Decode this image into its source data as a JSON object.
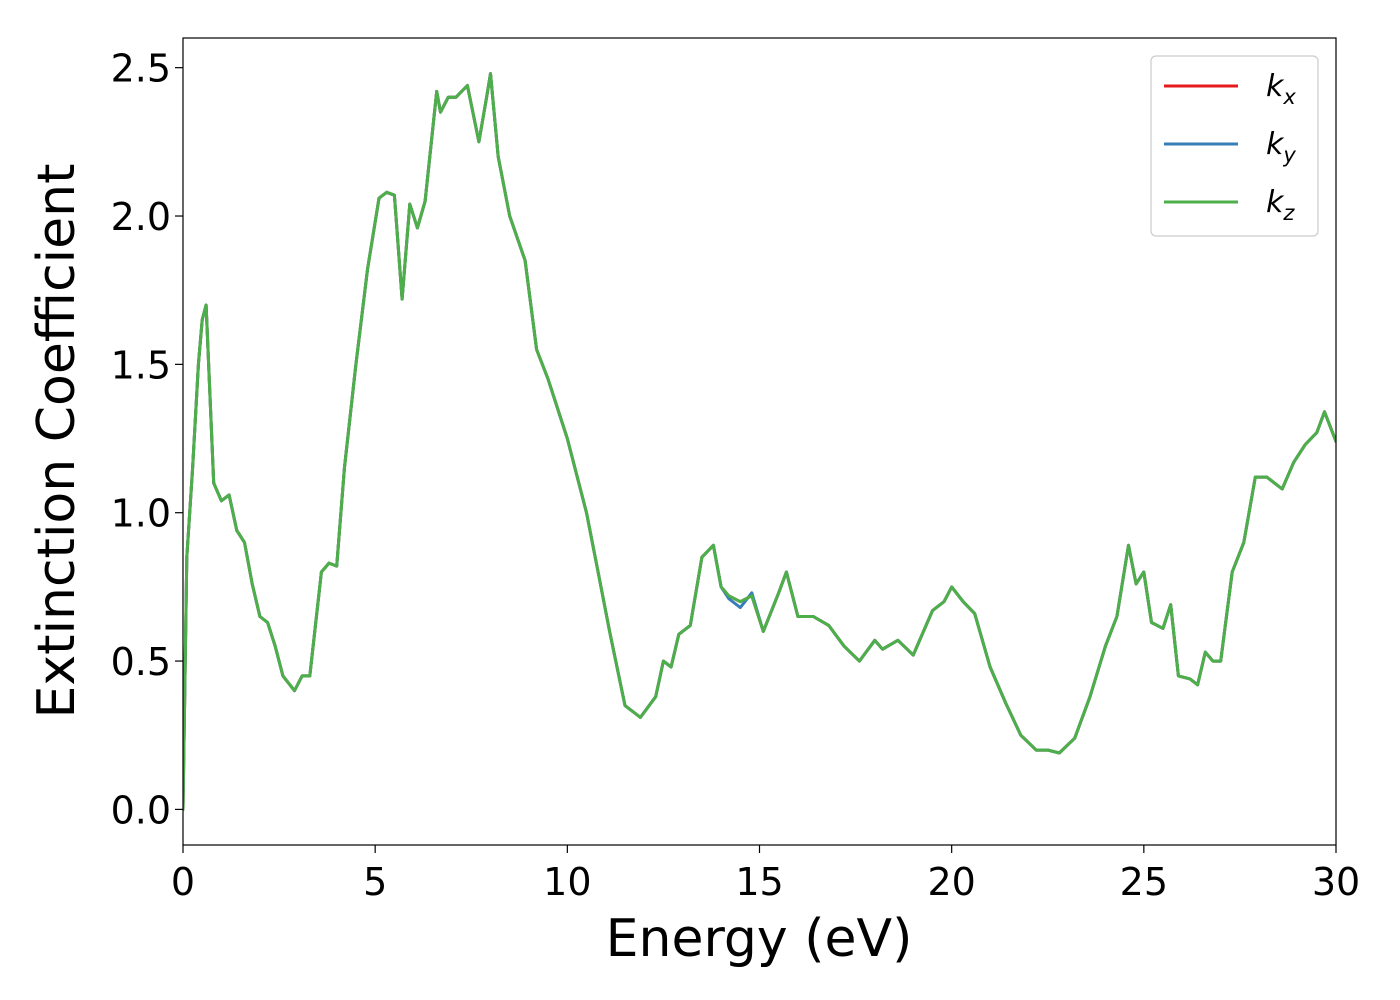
{
  "chart_data": {
    "type": "line",
    "xlabel": "Energy (eV)",
    "ylabel": "Extinction Coefficient",
    "xlim": [
      0,
      30
    ],
    "ylim": [
      -0.12,
      2.6
    ],
    "x_ticks": [
      "0",
      "5",
      "10",
      "15",
      "20",
      "25",
      "30"
    ],
    "y_ticks": [
      "0.0",
      "0.5",
      "1.0",
      "1.5",
      "2.0",
      "2.5"
    ],
    "x_tick_values": [
      0,
      5,
      10,
      15,
      20,
      25,
      30
    ],
    "y_tick_values": [
      0.0,
      0.5,
      1.0,
      1.5,
      2.0,
      2.5
    ],
    "grid": false,
    "legend_position": "top-right",
    "series": [
      {
        "name": "k_x",
        "label_base": "k",
        "label_sub": "x",
        "color": "#e41a1c",
        "x": [
          0,
          0.1,
          0.25,
          0.4,
          0.5,
          0.6,
          0.7,
          0.8,
          1.0,
          1.2,
          1.4,
          1.6,
          1.8,
          2.0,
          2.2,
          2.4,
          2.6,
          2.9,
          3.1,
          3.3,
          3.6,
          3.8,
          4.0,
          4.2,
          4.5,
          4.8,
          5.1,
          5.3,
          5.5,
          5.7,
          5.9,
          6.1,
          6.3,
          6.6,
          6.7,
          6.9,
          7.1,
          7.4,
          7.7,
          7.9,
          8.0,
          8.2,
          8.5,
          8.9,
          9.2,
          9.5,
          10.0,
          10.5,
          10.8,
          11.1,
          11.5,
          11.9,
          12.3,
          12.5,
          12.7,
          12.9,
          13.2,
          13.5,
          13.8,
          14.0,
          14.2,
          14.5,
          14.8,
          15.1,
          15.5,
          15.7,
          16.0,
          16.4,
          16.8,
          17.2,
          17.6,
          18.0,
          18.2,
          18.6,
          19.0,
          19.5,
          19.8,
          20.0,
          20.3,
          20.6,
          21.0,
          21.4,
          21.8,
          22.2,
          22.5,
          22.8,
          23.2,
          23.6,
          24.0,
          24.3,
          24.6,
          24.8,
          25.0,
          25.2,
          25.5,
          25.7,
          25.9,
          26.2,
          26.4,
          26.6,
          26.8,
          27.0,
          27.3,
          27.6,
          27.9,
          28.2,
          28.6,
          28.9,
          29.2,
          29.5,
          29.7,
          30.0
        ],
        "y": [
          0.0,
          0.85,
          1.15,
          1.5,
          1.65,
          1.7,
          1.4,
          1.1,
          1.04,
          1.06,
          0.94,
          0.9,
          0.76,
          0.65,
          0.63,
          0.55,
          0.45,
          0.4,
          0.45,
          0.45,
          0.8,
          0.83,
          0.82,
          1.15,
          1.5,
          1.82,
          2.06,
          2.08,
          2.07,
          1.72,
          2.04,
          1.96,
          2.05,
          2.42,
          2.35,
          2.4,
          2.4,
          2.44,
          2.25,
          2.4,
          2.48,
          2.2,
          2.0,
          1.85,
          1.55,
          1.45,
          1.25,
          1.0,
          0.8,
          0.6,
          0.35,
          0.31,
          0.38,
          0.5,
          0.48,
          0.59,
          0.62,
          0.85,
          0.89,
          0.75,
          0.72,
          0.7,
          0.72,
          0.6,
          0.73,
          0.8,
          0.65,
          0.65,
          0.62,
          0.55,
          0.5,
          0.57,
          0.54,
          0.57,
          0.52,
          0.67,
          0.7,
          0.75,
          0.7,
          0.66,
          0.48,
          0.36,
          0.25,
          0.2,
          0.2,
          0.19,
          0.24,
          0.38,
          0.55,
          0.65,
          0.89,
          0.76,
          0.8,
          0.63,
          0.61,
          0.69,
          0.45,
          0.44,
          0.42,
          0.53,
          0.5,
          0.5,
          0.8,
          0.9,
          1.12,
          1.12,
          1.08,
          1.17,
          1.23,
          1.27,
          1.34,
          1.24
        ]
      },
      {
        "name": "k_y",
        "label_base": "k",
        "label_sub": "y",
        "color": "#377eb8",
        "x": [
          0,
          0.1,
          0.25,
          0.4,
          0.5,
          0.6,
          0.7,
          0.8,
          1.0,
          1.2,
          1.4,
          1.6,
          1.8,
          2.0,
          2.2,
          2.4,
          2.6,
          2.9,
          3.1,
          3.3,
          3.6,
          3.8,
          4.0,
          4.2,
          4.5,
          4.8,
          5.1,
          5.3,
          5.5,
          5.7,
          5.9,
          6.1,
          6.3,
          6.6,
          6.7,
          6.9,
          7.1,
          7.4,
          7.7,
          7.9,
          8.0,
          8.2,
          8.5,
          8.9,
          9.2,
          9.5,
          10.0,
          10.5,
          10.8,
          11.1,
          11.5,
          11.9,
          12.3,
          12.5,
          12.7,
          12.9,
          13.2,
          13.5,
          13.8,
          14.0,
          14.2,
          14.5,
          14.8,
          15.1,
          15.5,
          15.7,
          16.0,
          16.4,
          16.8,
          17.2,
          17.6,
          18.0,
          18.2,
          18.6,
          19.0,
          19.5,
          19.8,
          20.0,
          20.3,
          20.6,
          21.0,
          21.4,
          21.8,
          22.2,
          22.5,
          22.8,
          23.2,
          23.6,
          24.0,
          24.3,
          24.6,
          24.8,
          25.0,
          25.2,
          25.5,
          25.7,
          25.9,
          26.2,
          26.4,
          26.6,
          26.8,
          27.0,
          27.3,
          27.6,
          27.9,
          28.2,
          28.6,
          28.9,
          29.2,
          29.5,
          29.7,
          30.0
        ],
        "y": [
          0.0,
          0.85,
          1.15,
          1.5,
          1.65,
          1.7,
          1.4,
          1.1,
          1.04,
          1.06,
          0.94,
          0.9,
          0.76,
          0.65,
          0.63,
          0.55,
          0.45,
          0.4,
          0.45,
          0.45,
          0.8,
          0.83,
          0.82,
          1.15,
          1.5,
          1.82,
          2.06,
          2.08,
          2.07,
          1.72,
          2.04,
          1.96,
          2.05,
          2.42,
          2.35,
          2.4,
          2.4,
          2.44,
          2.25,
          2.4,
          2.48,
          2.2,
          2.0,
          1.85,
          1.55,
          1.45,
          1.25,
          1.0,
          0.8,
          0.6,
          0.35,
          0.31,
          0.38,
          0.5,
          0.48,
          0.59,
          0.62,
          0.85,
          0.89,
          0.75,
          0.71,
          0.68,
          0.73,
          0.6,
          0.73,
          0.8,
          0.65,
          0.65,
          0.62,
          0.55,
          0.5,
          0.57,
          0.54,
          0.57,
          0.52,
          0.67,
          0.7,
          0.75,
          0.7,
          0.66,
          0.48,
          0.36,
          0.25,
          0.2,
          0.2,
          0.19,
          0.24,
          0.38,
          0.55,
          0.65,
          0.89,
          0.76,
          0.8,
          0.63,
          0.61,
          0.69,
          0.45,
          0.44,
          0.42,
          0.53,
          0.5,
          0.5,
          0.8,
          0.9,
          1.12,
          1.12,
          1.08,
          1.17,
          1.23,
          1.27,
          1.34,
          1.24
        ]
      },
      {
        "name": "k_z",
        "label_base": "k",
        "label_sub": "z",
        "color": "#4daf4a",
        "x": [
          0,
          0.1,
          0.25,
          0.4,
          0.5,
          0.6,
          0.7,
          0.8,
          1.0,
          1.2,
          1.4,
          1.6,
          1.8,
          2.0,
          2.2,
          2.4,
          2.6,
          2.9,
          3.1,
          3.3,
          3.6,
          3.8,
          4.0,
          4.2,
          4.5,
          4.8,
          5.1,
          5.3,
          5.5,
          5.7,
          5.9,
          6.1,
          6.3,
          6.6,
          6.7,
          6.9,
          7.1,
          7.4,
          7.7,
          7.9,
          8.0,
          8.2,
          8.5,
          8.9,
          9.2,
          9.5,
          10.0,
          10.5,
          10.8,
          11.1,
          11.5,
          11.9,
          12.3,
          12.5,
          12.7,
          12.9,
          13.2,
          13.5,
          13.8,
          14.0,
          14.2,
          14.5,
          14.8,
          15.1,
          15.5,
          15.7,
          16.0,
          16.4,
          16.8,
          17.2,
          17.6,
          18.0,
          18.2,
          18.6,
          19.0,
          19.5,
          19.8,
          20.0,
          20.3,
          20.6,
          21.0,
          21.4,
          21.8,
          22.2,
          22.5,
          22.8,
          23.2,
          23.6,
          24.0,
          24.3,
          24.6,
          24.8,
          25.0,
          25.2,
          25.5,
          25.7,
          25.9,
          26.2,
          26.4,
          26.6,
          26.8,
          27.0,
          27.3,
          27.6,
          27.9,
          28.2,
          28.6,
          28.9,
          29.2,
          29.5,
          29.7,
          30.0
        ],
        "y": [
          0.0,
          0.85,
          1.15,
          1.5,
          1.65,
          1.7,
          1.4,
          1.1,
          1.04,
          1.06,
          0.94,
          0.9,
          0.76,
          0.65,
          0.63,
          0.55,
          0.45,
          0.4,
          0.45,
          0.45,
          0.8,
          0.83,
          0.82,
          1.15,
          1.5,
          1.82,
          2.06,
          2.08,
          2.07,
          1.72,
          2.04,
          1.96,
          2.05,
          2.42,
          2.35,
          2.4,
          2.4,
          2.44,
          2.25,
          2.4,
          2.48,
          2.2,
          2.0,
          1.85,
          1.55,
          1.45,
          1.25,
          1.0,
          0.8,
          0.6,
          0.35,
          0.31,
          0.38,
          0.5,
          0.48,
          0.59,
          0.62,
          0.85,
          0.89,
          0.75,
          0.72,
          0.7,
          0.72,
          0.6,
          0.73,
          0.8,
          0.65,
          0.65,
          0.62,
          0.55,
          0.5,
          0.57,
          0.54,
          0.57,
          0.52,
          0.67,
          0.7,
          0.75,
          0.7,
          0.66,
          0.48,
          0.36,
          0.25,
          0.2,
          0.2,
          0.19,
          0.24,
          0.38,
          0.55,
          0.65,
          0.89,
          0.76,
          0.8,
          0.63,
          0.61,
          0.69,
          0.45,
          0.44,
          0.42,
          0.53,
          0.5,
          0.5,
          0.8,
          0.9,
          1.12,
          1.12,
          1.08,
          1.17,
          1.23,
          1.27,
          1.34,
          1.24
        ]
      }
    ]
  }
}
